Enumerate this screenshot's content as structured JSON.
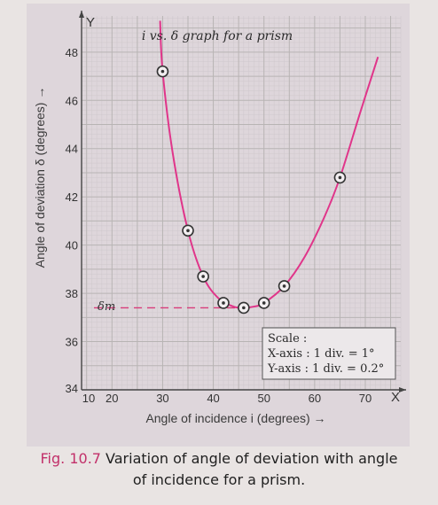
{
  "chart_data": {
    "type": "scatter",
    "title": "i vs. δ graph for a prism",
    "xlabel": "Angle of incidence i (degrees) →",
    "ylabel": "Angle of deviation δ (degrees) →",
    "x_axis_letter": "X",
    "y_axis_letter": "Y",
    "xlim": [
      14,
      77
    ],
    "ylim": [
      34,
      49.5
    ],
    "x_ticks": [
      "10",
      "20",
      "30",
      "40",
      "50",
      "60",
      "70"
    ],
    "y_ticks": [
      "34",
      "36",
      "38",
      "40",
      "42",
      "44",
      "46",
      "48"
    ],
    "points": [
      {
        "x": 30,
        "y": 47.2
      },
      {
        "x": 35,
        "y": 40.6
      },
      {
        "x": 38,
        "y": 38.7
      },
      {
        "x": 42,
        "y": 37.6
      },
      {
        "x": 46,
        "y": 37.4
      },
      {
        "x": 50,
        "y": 37.6
      },
      {
        "x": 54,
        "y": 38.3
      },
      {
        "x": 65,
        "y": 42.8
      }
    ],
    "curve": [
      {
        "x": 29.5,
        "y": 49.3
      },
      {
        "x": 30,
        "y": 47.2
      },
      {
        "x": 32,
        "y": 43.8
      },
      {
        "x": 35,
        "y": 40.6
      },
      {
        "x": 38,
        "y": 38.7
      },
      {
        "x": 41,
        "y": 37.8
      },
      {
        "x": 44,
        "y": 37.45
      },
      {
        "x": 46,
        "y": 37.4
      },
      {
        "x": 48,
        "y": 37.45
      },
      {
        "x": 50,
        "y": 37.6
      },
      {
        "x": 54,
        "y": 38.3
      },
      {
        "x": 58,
        "y": 39.5
      },
      {
        "x": 62,
        "y": 41.2
      },
      {
        "x": 65,
        "y": 42.8
      },
      {
        "x": 69,
        "y": 45.5
      },
      {
        "x": 72.5,
        "y": 47.8
      }
    ],
    "min_deviation": {
      "label": "δm",
      "y": 37.4
    },
    "scale_box": {
      "title": "Scale :",
      "lines": [
        "X-axis : 1 div. = 1°",
        "Y-axis : 1 div. = 0.2°"
      ]
    },
    "grid": true,
    "colors": {
      "curve": "#e0358a",
      "marker": "#333333",
      "grid": "#b8b4b4",
      "dashed": "#d83a7a"
    }
  },
  "caption": {
    "label": "Fig. 10.7",
    "line1": "Variation of angle of deviation with angle",
    "line2": "of incidence for a prism."
  }
}
